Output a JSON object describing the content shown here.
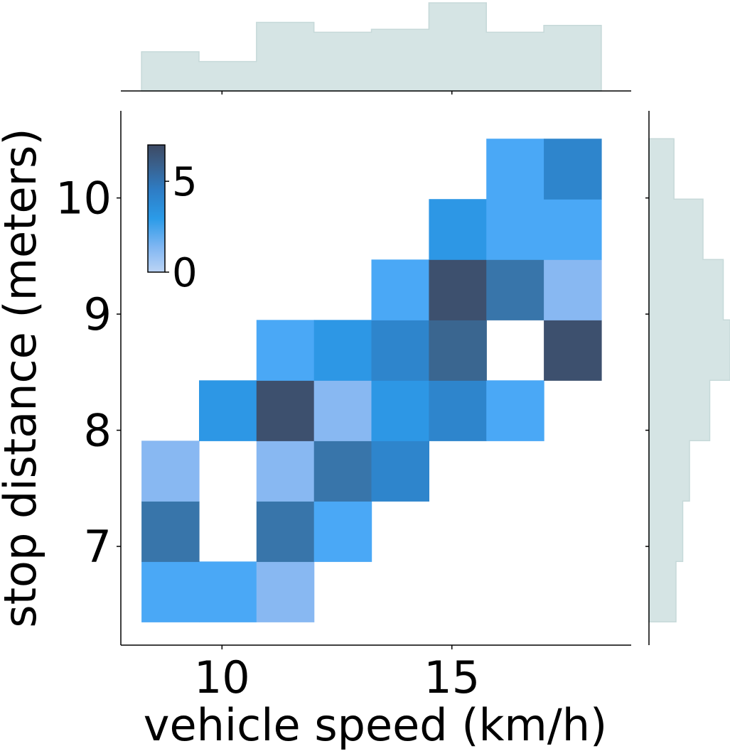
{
  "chart_data": {
    "type": "heatmap",
    "xlabel": "vehicle speed (km/h)",
    "ylabel": "stop distance (meters)",
    "xlim": [
      7.8,
      18.9
    ],
    "ylim": [
      6.15,
      10.75
    ],
    "x_ticks": [
      10,
      15
    ],
    "y_ticks": [
      7,
      8,
      9,
      10
    ],
    "x_bin_edges": [
      8.25,
      9.5,
      10.75,
      12.0,
      13.25,
      14.5,
      15.75,
      17.0,
      18.25
    ],
    "y_bin_edges": [
      6.35,
      6.87,
      7.39,
      7.91,
      8.43,
      8.95,
      9.47,
      9.99,
      10.51
    ],
    "counts": [
      [
        3,
        3,
        1,
        0,
        0,
        0,
        0,
        0
      ],
      [
        5,
        0,
        5,
        3,
        0,
        0,
        0,
        0
      ],
      [
        1,
        0,
        1,
        5,
        4,
        0,
        0,
        0
      ],
      [
        0,
        3,
        7,
        1,
        3,
        4,
        3,
        0
      ],
      [
        0,
        0,
        3,
        3,
        4,
        6,
        0,
        7
      ],
      [
        0,
        0,
        0,
        0,
        3,
        7,
        5,
        1
      ],
      [
        0,
        0,
        0,
        0,
        0,
        3,
        3,
        3
      ],
      [
        0,
        0,
        0,
        0,
        0,
        0,
        3,
        4
      ]
    ],
    "colorbar": {
      "min": 0,
      "max": 7,
      "ticks": [
        0,
        5
      ]
    },
    "colors": {
      "level_1": "#88b8f2",
      "level_3": "#4aa8f6",
      "level_3b": "#2d97e5",
      "level_4": "#2e85cc",
      "level_5": "#3875aa",
      "level_6": "#3a6690",
      "level_7": "#3d506e",
      "marginal_fill": "#d5e4e4",
      "marginal_edge": "#c6d9d9"
    },
    "marginal_x_counts": [
      4,
      3,
      7,
      6,
      6.3,
      9,
      6,
      6.7
    ],
    "marginal_y_counts": [
      4,
      5,
      6,
      9,
      12,
      11,
      8,
      3.7
    ],
    "grid": false,
    "legend": "none"
  }
}
